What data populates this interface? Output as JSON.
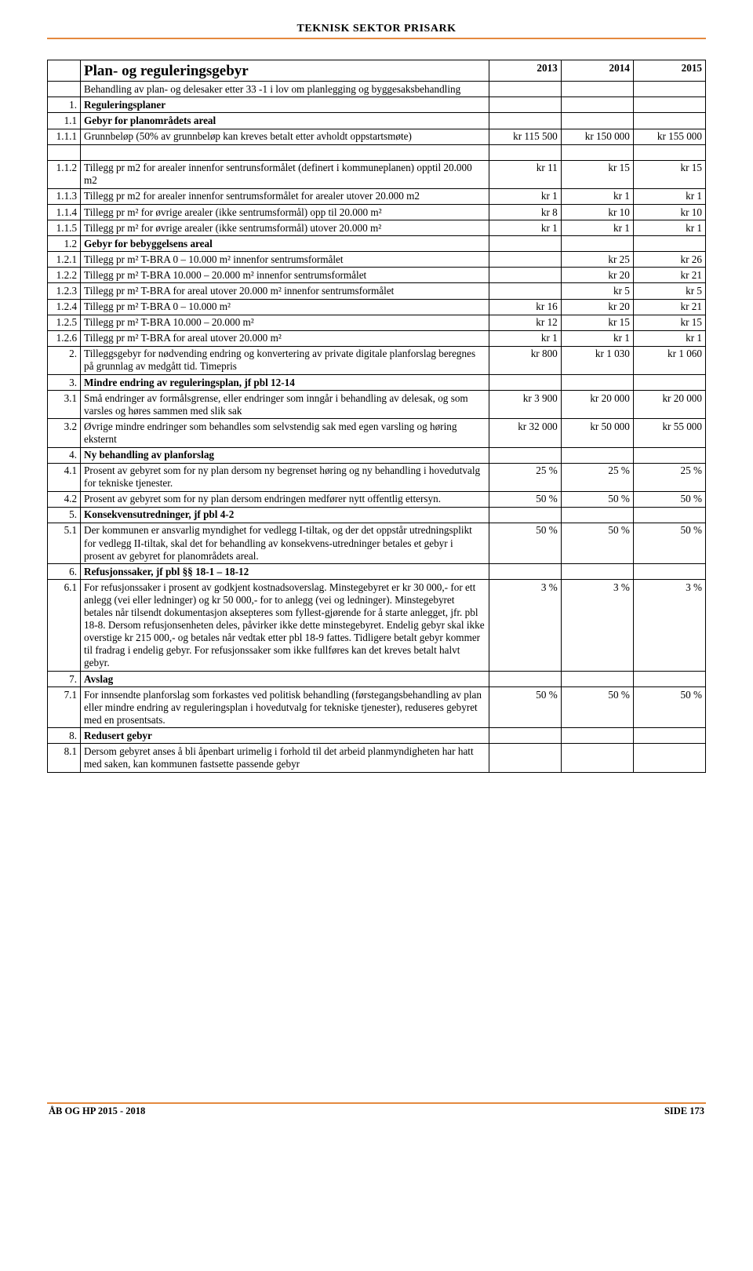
{
  "header": "TEKNISK SEKTOR PRISARK",
  "title": "Plan- og reguleringsgebyr",
  "years": [
    "2013",
    "2014",
    "2015"
  ],
  "subtitle": "Behandling av plan- og delesaker etter 33 -1 i lov om planlegging og byggesaksbehandling",
  "rows": [
    {
      "n": "1.",
      "d": "Reguleringsplaner",
      "bold": true
    },
    {
      "n": "1.1",
      "d": "Gebyr for planområdets areal",
      "bold": true
    },
    {
      "n": "1.1.1",
      "d": "Grunnbeløp (50% av grunnbeløp kan kreves betalt etter avholdt oppstartsmøte)",
      "v": [
        "kr 115 500",
        "kr 150 000",
        "kr 155 000"
      ]
    },
    {
      "blank": true
    },
    {
      "n": "1.1.2",
      "d": "Tillegg pr m2 for arealer innenfor sentrunsformålet (definert i kommuneplanen) opptil 20.000 m2",
      "v": [
        "kr 11",
        "kr 15",
        "kr 15"
      ]
    },
    {
      "n": "1.1.3",
      "d": "Tillegg pr m2 for arealer innenfor sentrumsformålet for arealer utover 20.000 m2",
      "v": [
        "kr 1",
        "kr 1",
        "kr 1"
      ]
    },
    {
      "n": "1.1.4",
      "d": "Tillegg pr m² for øvrige arealer (ikke sentrumsformål) opp til 20.000 m²",
      "v": [
        "kr 8",
        "kr 10",
        "kr 10"
      ]
    },
    {
      "n": "1.1.5",
      "d": "Tillegg pr m² for øvrige arealer (ikke sentrumsformål) utover 20.000 m²",
      "v": [
        "kr 1",
        "kr 1",
        "kr 1"
      ]
    },
    {
      "n": "1.2",
      "d": "Gebyr for bebyggelsens areal",
      "bold": true
    },
    {
      "n": "1.2.1",
      "d": "Tillegg pr m² T-BRA 0 – 10.000 m² innenfor sentrumsformålet",
      "v": [
        "",
        "kr 25",
        "kr 26"
      ]
    },
    {
      "n": "1.2.2",
      "d": "Tillegg pr m² T-BRA 10.000 – 20.000 m² innenfor sentrumsformålet",
      "v": [
        "",
        "kr 20",
        "kr 21"
      ]
    },
    {
      "n": "1.2.3",
      "d": "Tillegg pr m² T-BRA for areal utover 20.000 m² innenfor sentrumsformålet",
      "v": [
        "",
        "kr 5",
        "kr 5"
      ]
    },
    {
      "n": "1.2.4",
      "d": "Tillegg pr m² T-BRA 0 – 10.000 m²",
      "v": [
        "kr 16",
        "kr 20",
        "kr 21"
      ]
    },
    {
      "n": "1.2.5",
      "d": "Tillegg pr m² T-BRA 10.000 – 20.000 m²",
      "v": [
        "kr 12",
        "kr 15",
        "kr 15"
      ]
    },
    {
      "n": "1.2.6",
      "d": "Tillegg pr m² T-BRA for areal utover 20.000 m²",
      "v": [
        "kr 1",
        "kr 1",
        "kr 1"
      ]
    },
    {
      "n": "2.",
      "d": "Tilleggsgebyr for nødvending endring og konvertering av private digitale planforslag beregnes på grunnlag av medgått tid.  Timepris",
      "v": [
        "kr 800",
        "kr 1 030",
        "kr 1 060"
      ]
    },
    {
      "n": "3.",
      "d": "Mindre endring av reguleringsplan, jf pbl 12-14",
      "bold": true
    },
    {
      "n": "3.1",
      "d": "Små endringer av formålsgrense, eller endringer som inngår i behandling av delesak, og som varsles og høres sammen med slik sak",
      "v": [
        "kr 3 900",
        "kr 20 000",
        "kr 20 000"
      ]
    },
    {
      "n": "3.2",
      "d": "Øvrige mindre endringer som behandles som selvstendig sak med egen varsling og høring eksternt",
      "v": [
        "kr 32 000",
        "kr 50 000",
        "kr 55 000"
      ]
    },
    {
      "n": "4.",
      "d": "Ny behandling av planforslag",
      "bold": true
    },
    {
      "n": "4.1",
      "d": "Prosent av gebyret som for ny plan dersom ny begrenset høring og ny behandling i hovedutvalg for tekniske tjenester.",
      "v": [
        "25 %",
        "25 %",
        "25 %"
      ]
    },
    {
      "n": "4.2",
      "d": "Prosent av gebyret som for ny plan dersom endringen medfører nytt offentlig ettersyn.",
      "v": [
        "50 %",
        "50 %",
        "50 %"
      ]
    },
    {
      "n": "5.",
      "d": "Konsekvensutredninger, jf pbl 4-2",
      "bold": true
    },
    {
      "n": "5.1",
      "d": "Der kommunen er ansvarlig myndighet for vedlegg I-tiltak, og der det oppstår utredningsplikt for vedlegg II-tiltak, skal det for behandling av konsekvens-utredninger betales et gebyr i prosent av gebyret for planområdets areal.",
      "v": [
        "50 %",
        "50 %",
        "50 %"
      ]
    },
    {
      "n": "6.",
      "d": "Refusjonssaker, jf pbl §§ 18-1 – 18-12",
      "bold": true
    },
    {
      "n": "6.1",
      "d": "For refusjonssaker i prosent av godkjent kostnadsoverslag. Minstegebyret er kr 30 000,- for ett anlegg (vei eller ledninger) og kr 50 000,- for to anlegg (vei og ledninger).  Minstegebyret betales når tilsendt dokumentasjon aksepteres som fyllest-gjørende for å starte anlegget, jfr. pbl 18-8. Dersom refusjonsenheten deles, påvirker ikke dette minstegebyret. Endelig gebyr skal ikke overstige kr 215 000,- og betales når vedtak etter pbl 18-9 fattes. Tidligere betalt gebyr kommer til fradrag i endelig gebyr. For refusjonssaker som ikke fullføres kan det kreves betalt halvt gebyr.",
      "v": [
        "3 %",
        "3 %",
        "3 %"
      ]
    },
    {
      "n": "7.",
      "d": "Avslag",
      "bold": true
    },
    {
      "n": "7.1",
      "d": "For innsendte planforslag som forkastes ved politisk behandling (førstegangsbehandling av plan eller mindre endring av reguleringsplan i hovedutvalg for tekniske tjenester), reduseres gebyret med en prosentsats.",
      "v": [
        "50 %",
        "50 %",
        "50 %"
      ]
    },
    {
      "n": "8.",
      "d": "Redusert gebyr",
      "bold": true
    },
    {
      "n": "8.1",
      "d": "Dersom gebyret anses å bli åpenbart urimelig i forhold til det arbeid planmyndigheten har hatt med saken, kan kommunen fastsette passende gebyr"
    }
  ],
  "footer_left": "ÅB OG HP 2015 - 2018",
  "footer_right": "SIDE 173",
  "colors": {
    "rule": "#e4893e"
  }
}
